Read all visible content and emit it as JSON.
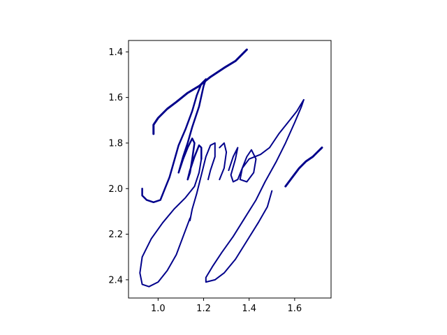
{
  "chart_data": {
    "type": "line",
    "xlim": [
      0.87,
      1.76
    ],
    "ylim": [
      2.48,
      1.35
    ],
    "y_inverted": true,
    "grid": false,
    "legend": "none",
    "xticks": [
      {
        "value": 1.0,
        "label": "1.0"
      },
      {
        "value": 1.2,
        "label": "1.2"
      },
      {
        "value": 1.4,
        "label": "1.4"
      },
      {
        "value": 1.6,
        "label": "1.6"
      }
    ],
    "yticks": [
      {
        "value": 1.4,
        "label": "1.4"
      },
      {
        "value": 1.6,
        "label": "1.6"
      },
      {
        "value": 1.8,
        "label": "1.8"
      },
      {
        "value": 2.0,
        "label": "2.0"
      },
      {
        "value": 2.2,
        "label": "2.2"
      },
      {
        "value": 2.4,
        "label": "2.4"
      }
    ],
    "color": "#00008b",
    "series": [
      {
        "width": 3.0,
        "points": [
          [
            0.98,
            1.76
          ],
          [
            0.98,
            1.72
          ],
          [
            1.0,
            1.69
          ],
          [
            1.04,
            1.65
          ],
          [
            1.08,
            1.62
          ],
          [
            1.13,
            1.58
          ],
          [
            1.18,
            1.55
          ],
          [
            1.23,
            1.51
          ],
          [
            1.29,
            1.47
          ],
          [
            1.34,
            1.44
          ],
          [
            1.39,
            1.39
          ]
        ]
      },
      {
        "width": 2.5,
        "points": [
          [
            0.93,
            2.0
          ],
          [
            0.93,
            2.03
          ],
          [
            0.95,
            2.05
          ],
          [
            0.98,
            2.06
          ],
          [
            1.01,
            2.05
          ],
          [
            1.03,
            2.0
          ],
          [
            1.05,
            1.95
          ],
          [
            1.07,
            1.88
          ],
          [
            1.09,
            1.81
          ],
          [
            1.12,
            1.74
          ],
          [
            1.15,
            1.66
          ],
          [
            1.17,
            1.59
          ],
          [
            1.19,
            1.54
          ],
          [
            1.21,
            1.52
          ],
          [
            1.2,
            1.55
          ],
          [
            1.18,
            1.64
          ],
          [
            1.15,
            1.73
          ],
          [
            1.13,
            1.8
          ],
          [
            1.11,
            1.86
          ],
          [
            1.09,
            1.93
          ],
          [
            1.11,
            1.87
          ],
          [
            1.13,
            1.82
          ],
          [
            1.15,
            1.78
          ],
          [
            1.16,
            1.8
          ],
          [
            1.15,
            1.87
          ],
          [
            1.14,
            1.93
          ],
          [
            1.13,
            1.96
          ],
          [
            1.14,
            1.92
          ],
          [
            1.16,
            1.86
          ],
          [
            1.18,
            1.81
          ],
          [
            1.19,
            1.82
          ],
          [
            1.19,
            1.87
          ]
        ]
      },
      {
        "width": 2.0,
        "points": [
          [
            1.19,
            1.87
          ],
          [
            1.18,
            1.93
          ],
          [
            1.16,
            1.99
          ],
          [
            1.12,
            2.04
          ],
          [
            1.07,
            2.09
          ],
          [
            1.02,
            2.15
          ],
          [
            0.97,
            2.22
          ],
          [
            0.93,
            2.3
          ],
          [
            0.92,
            2.37
          ],
          [
            0.93,
            2.42
          ],
          [
            0.96,
            2.43
          ],
          [
            1.0,
            2.41
          ],
          [
            1.04,
            2.36
          ],
          [
            1.08,
            2.29
          ],
          [
            1.11,
            2.21
          ],
          [
            1.14,
            2.13
          ]
        ]
      },
      {
        "width": 2.0,
        "points": [
          [
            1.14,
            2.14
          ],
          [
            1.15,
            2.09
          ],
          [
            1.17,
            2.02
          ],
          [
            1.19,
            1.94
          ],
          [
            1.21,
            1.86
          ],
          [
            1.23,
            1.81
          ],
          [
            1.25,
            1.8
          ],
          [
            1.25,
            1.86
          ],
          [
            1.23,
            1.92
          ],
          [
            1.22,
            1.96
          ]
        ]
      },
      {
        "width": 2.0,
        "points": [
          [
            1.27,
            1.82
          ],
          [
            1.29,
            1.8
          ],
          [
            1.3,
            1.84
          ],
          [
            1.29,
            1.91
          ],
          [
            1.27,
            1.96
          ]
        ]
      },
      {
        "width": 2.0,
        "points": [
          [
            1.31,
            1.92
          ],
          [
            1.33,
            1.86
          ],
          [
            1.35,
            1.82
          ],
          [
            1.34,
            1.87
          ],
          [
            1.32,
            1.94
          ],
          [
            1.33,
            1.97
          ],
          [
            1.35,
            1.96
          ],
          [
            1.37,
            1.91
          ],
          [
            1.39,
            1.86
          ],
          [
            1.41,
            1.83
          ],
          [
            1.43,
            1.87
          ],
          [
            1.42,
            1.93
          ],
          [
            1.39,
            1.97
          ],
          [
            1.36,
            1.96
          ],
          [
            1.37,
            1.91
          ],
          [
            1.4,
            1.87
          ],
          [
            1.45,
            1.85
          ],
          [
            1.49,
            1.82
          ]
        ]
      },
      {
        "width": 2.0,
        "points": [
          [
            1.49,
            1.82
          ],
          [
            1.53,
            1.76
          ],
          [
            1.57,
            1.71
          ],
          [
            1.61,
            1.66
          ],
          [
            1.64,
            1.61
          ],
          [
            1.63,
            1.64
          ],
          [
            1.6,
            1.71
          ],
          [
            1.56,
            1.8
          ],
          [
            1.52,
            1.88
          ],
          [
            1.47,
            1.97
          ],
          [
            1.43,
            2.05
          ],
          [
            1.38,
            2.13
          ],
          [
            1.33,
            2.21
          ],
          [
            1.28,
            2.28
          ],
          [
            1.24,
            2.34
          ],
          [
            1.21,
            2.39
          ],
          [
            1.21,
            2.41
          ],
          [
            1.25,
            2.4
          ],
          [
            1.29,
            2.37
          ],
          [
            1.34,
            2.31
          ],
          [
            1.39,
            2.23
          ],
          [
            1.44,
            2.15
          ],
          [
            1.48,
            2.08
          ],
          [
            1.5,
            2.01
          ]
        ]
      },
      {
        "width": 3.0,
        "points": [
          [
            1.56,
            1.99
          ],
          [
            1.59,
            1.95
          ],
          [
            1.62,
            1.91
          ],
          [
            1.65,
            1.88
          ],
          [
            1.68,
            1.86
          ],
          [
            1.7,
            1.84
          ],
          [
            1.72,
            1.82
          ]
        ]
      }
    ]
  }
}
